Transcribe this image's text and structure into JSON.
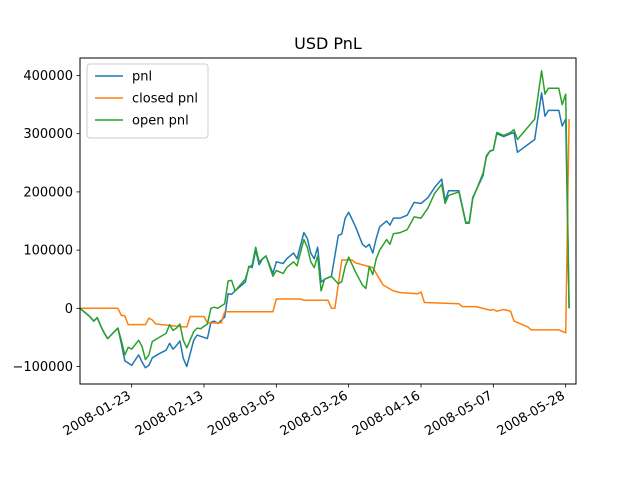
{
  "chart_data": {
    "type": "line",
    "title": "USD PnL",
    "xlabel": "",
    "ylabel": "",
    "x_axis_type": "date",
    "xlim": [
      "2008-01-08",
      "2008-05-31"
    ],
    "ylim": [
      -130000,
      430000
    ],
    "x_ticks": [
      "2008-01-23",
      "2008-02-13",
      "2008-03-05",
      "2008-03-26",
      "2008-04-16",
      "2008-05-07",
      "2008-05-28"
    ],
    "y_ticks": [
      -100000,
      0,
      100000,
      200000,
      300000,
      400000
    ],
    "y_tick_labels": [
      "−100000",
      "0",
      "100000",
      "200000",
      "300000",
      "400000"
    ],
    "grid": false,
    "legend_position": "upper-left",
    "series": [
      {
        "name": "pnl",
        "color": "#1f77b4",
        "points": [
          [
            "2008-01-08",
            0
          ],
          [
            "2008-01-09",
            -5000
          ],
          [
            "2008-01-10",
            -10000
          ],
          [
            "2008-01-11",
            -15000
          ],
          [
            "2008-01-12",
            -22000
          ],
          [
            "2008-01-13",
            -16000
          ],
          [
            "2008-01-14",
            -30000
          ],
          [
            "2008-01-15",
            -42000
          ],
          [
            "2008-01-16",
            -52000
          ],
          [
            "2008-01-17",
            -46000
          ],
          [
            "2008-01-18",
            -40000
          ],
          [
            "2008-01-19",
            -34000
          ],
          [
            "2008-01-20",
            -60000
          ],
          [
            "2008-01-21",
            -90000
          ],
          [
            "2008-01-22",
            -94000
          ],
          [
            "2008-01-23",
            -98000
          ],
          [
            "2008-01-25",
            -80000
          ],
          [
            "2008-01-26",
            -92000
          ],
          [
            "2008-01-27",
            -102000
          ],
          [
            "2008-01-28",
            -98000
          ],
          [
            "2008-01-29",
            -85000
          ],
          [
            "2008-01-31",
            -78000
          ],
          [
            "2008-02-02",
            -72000
          ],
          [
            "2008-02-03",
            -60000
          ],
          [
            "2008-02-04",
            -70000
          ],
          [
            "2008-02-05",
            -64000
          ],
          [
            "2008-02-06",
            -56000
          ],
          [
            "2008-02-07",
            -86000
          ],
          [
            "2008-02-08",
            -100000
          ],
          [
            "2008-02-10",
            -55000
          ],
          [
            "2008-02-11",
            -46000
          ],
          [
            "2008-02-12",
            -48000
          ],
          [
            "2008-02-14",
            -52000
          ],
          [
            "2008-02-15",
            -24000
          ],
          [
            "2008-02-16",
            -22000
          ],
          [
            "2008-02-17",
            -26000
          ],
          [
            "2008-02-19",
            -15000
          ],
          [
            "2008-02-20",
            25000
          ],
          [
            "2008-02-21",
            24000
          ],
          [
            "2008-02-22",
            30000
          ],
          [
            "2008-02-25",
            45000
          ],
          [
            "2008-02-26",
            72000
          ],
          [
            "2008-02-27",
            70000
          ],
          [
            "2008-02-28",
            100000
          ],
          [
            "2008-02-29",
            75000
          ],
          [
            "2008-03-01",
            85000
          ],
          [
            "2008-03-02",
            90000
          ],
          [
            "2008-03-04",
            60000
          ],
          [
            "2008-03-05",
            80000
          ],
          [
            "2008-03-07",
            77000
          ],
          [
            "2008-03-08",
            85000
          ],
          [
            "2008-03-10",
            95000
          ],
          [
            "2008-03-11",
            85000
          ],
          [
            "2008-03-13",
            130000
          ],
          [
            "2008-03-14",
            120000
          ],
          [
            "2008-03-15",
            95000
          ],
          [
            "2008-03-16",
            85000
          ],
          [
            "2008-03-17",
            105000
          ],
          [
            "2008-03-18",
            45000
          ],
          [
            "2008-03-19",
            50000
          ],
          [
            "2008-03-21",
            55000
          ],
          [
            "2008-03-23",
            125000
          ],
          [
            "2008-03-24",
            128000
          ],
          [
            "2008-03-25",
            155000
          ],
          [
            "2008-03-26",
            165000
          ],
          [
            "2008-03-28",
            140000
          ],
          [
            "2008-03-30",
            110000
          ],
          [
            "2008-03-31",
            105000
          ],
          [
            "2008-04-01",
            110000
          ],
          [
            "2008-04-02",
            95000
          ],
          [
            "2008-04-03",
            120000
          ],
          [
            "2008-04-04",
            140000
          ],
          [
            "2008-04-06",
            150000
          ],
          [
            "2008-04-07",
            143000
          ],
          [
            "2008-04-08",
            155000
          ],
          [
            "2008-04-10",
            155000
          ],
          [
            "2008-04-12",
            160000
          ],
          [
            "2008-04-14",
            182000
          ],
          [
            "2008-04-16",
            180000
          ],
          [
            "2008-04-18",
            190000
          ],
          [
            "2008-04-20",
            208000
          ],
          [
            "2008-04-22",
            222000
          ],
          [
            "2008-04-23",
            185000
          ],
          [
            "2008-04-24",
            202000
          ],
          [
            "2008-04-27",
            202000
          ],
          [
            "2008-04-29",
            148000
          ],
          [
            "2008-04-30",
            147000
          ],
          [
            "2008-05-01",
            190000
          ],
          [
            "2008-05-04",
            228000
          ],
          [
            "2008-05-05",
            262000
          ],
          [
            "2008-05-06",
            270000
          ],
          [
            "2008-05-07",
            272000
          ],
          [
            "2008-05-08",
            300000
          ],
          [
            "2008-05-10",
            295000
          ],
          [
            "2008-05-12",
            300000
          ],
          [
            "2008-05-13",
            302000
          ],
          [
            "2008-05-14",
            268000
          ],
          [
            "2008-05-19",
            290000
          ],
          [
            "2008-05-21",
            370000
          ],
          [
            "2008-05-22",
            330000
          ],
          [
            "2008-05-23",
            340000
          ],
          [
            "2008-05-26",
            340000
          ],
          [
            "2008-05-27",
            313000
          ],
          [
            "2008-05-28",
            325000
          ],
          [
            "2008-05-29",
            0
          ]
        ]
      },
      {
        "name": "closed pnl",
        "color": "#ff7f0e",
        "points": [
          [
            "2008-01-08",
            0
          ],
          [
            "2008-01-19",
            0
          ],
          [
            "2008-01-20",
            -12000
          ],
          [
            "2008-01-21",
            -13000
          ],
          [
            "2008-01-22",
            -28000
          ],
          [
            "2008-01-27",
            -28000
          ],
          [
            "2008-01-28",
            -17000
          ],
          [
            "2008-01-29",
            -20000
          ],
          [
            "2008-01-30",
            -27000
          ],
          [
            "2008-02-07",
            -32000
          ],
          [
            "2008-02-08",
            -32000
          ],
          [
            "2008-02-09",
            -14000
          ],
          [
            "2008-02-13",
            -14000
          ],
          [
            "2008-02-14",
            -25000
          ],
          [
            "2008-02-18",
            -25000
          ],
          [
            "2008-02-19",
            -6000
          ],
          [
            "2008-03-04",
            -6000
          ],
          [
            "2008-03-05",
            16000
          ],
          [
            "2008-03-12",
            16000
          ],
          [
            "2008-03-13",
            14000
          ],
          [
            "2008-03-20",
            14000
          ],
          [
            "2008-03-21",
            0
          ],
          [
            "2008-03-22",
            0
          ],
          [
            "2008-03-24",
            83000
          ],
          [
            "2008-03-27",
            83000
          ],
          [
            "2008-03-28",
            78000
          ],
          [
            "2008-04-02",
            70000
          ],
          [
            "2008-04-05",
            40000
          ],
          [
            "2008-04-08",
            30000
          ],
          [
            "2008-04-10",
            27000
          ],
          [
            "2008-04-15",
            25000
          ],
          [
            "2008-04-16",
            28000
          ],
          [
            "2008-04-17",
            10000
          ],
          [
            "2008-04-27",
            8000
          ],
          [
            "2008-04-28",
            3000
          ],
          [
            "2008-05-02",
            3000
          ],
          [
            "2008-05-06",
            -3000
          ],
          [
            "2008-05-07",
            -2000
          ],
          [
            "2008-05-08",
            -5000
          ],
          [
            "2008-05-10",
            -2000
          ],
          [
            "2008-05-12",
            -5000
          ],
          [
            "2008-05-13",
            -22000
          ],
          [
            "2008-05-17",
            -32000
          ],
          [
            "2008-05-18",
            -37000
          ],
          [
            "2008-05-26",
            -37000
          ],
          [
            "2008-05-28",
            -42000
          ],
          [
            "2008-05-29",
            325000
          ]
        ]
      },
      {
        "name": "open pnl",
        "color": "#2ca02c",
        "points": [
          [
            "2008-01-08",
            0
          ],
          [
            "2008-01-09",
            -5000
          ],
          [
            "2008-01-10",
            -10000
          ],
          [
            "2008-01-11",
            -15000
          ],
          [
            "2008-01-12",
            -22000
          ],
          [
            "2008-01-13",
            -16000
          ],
          [
            "2008-01-14",
            -30000
          ],
          [
            "2008-01-15",
            -42000
          ],
          [
            "2008-01-16",
            -52000
          ],
          [
            "2008-01-17",
            -46000
          ],
          [
            "2008-01-18",
            -40000
          ],
          [
            "2008-01-19",
            -34000
          ],
          [
            "2008-01-20",
            -55000
          ],
          [
            "2008-01-21",
            -80000
          ],
          [
            "2008-01-22",
            -67000
          ],
          [
            "2008-01-23",
            -70000
          ],
          [
            "2008-01-25",
            -55000
          ],
          [
            "2008-01-26",
            -65000
          ],
          [
            "2008-01-27",
            -88000
          ],
          [
            "2008-01-28",
            -80000
          ],
          [
            "2008-01-29",
            -57000
          ],
          [
            "2008-01-31",
            -50000
          ],
          [
            "2008-02-02",
            -43000
          ],
          [
            "2008-02-03",
            -28000
          ],
          [
            "2008-02-04",
            -38000
          ],
          [
            "2008-02-05",
            -34000
          ],
          [
            "2008-02-06",
            -27000
          ],
          [
            "2008-02-07",
            -55000
          ],
          [
            "2008-02-08",
            -68000
          ],
          [
            "2008-02-10",
            -40000
          ],
          [
            "2008-02-11",
            -34000
          ],
          [
            "2008-02-12",
            -35000
          ],
          [
            "2008-02-14",
            -27000
          ],
          [
            "2008-02-15",
            0
          ],
          [
            "2008-02-16",
            2000
          ],
          [
            "2008-02-17",
            0
          ],
          [
            "2008-02-19",
            8000
          ],
          [
            "2008-02-20",
            47000
          ],
          [
            "2008-02-21",
            48000
          ],
          [
            "2008-02-22",
            30000
          ],
          [
            "2008-02-25",
            50000
          ],
          [
            "2008-02-26",
            70000
          ],
          [
            "2008-02-27",
            75000
          ],
          [
            "2008-02-28",
            105000
          ],
          [
            "2008-02-29",
            80000
          ],
          [
            "2008-03-01",
            85000
          ],
          [
            "2008-03-02",
            90000
          ],
          [
            "2008-03-04",
            55000
          ],
          [
            "2008-03-05",
            65000
          ],
          [
            "2008-03-07",
            60000
          ],
          [
            "2008-03-08",
            70000
          ],
          [
            "2008-03-10",
            80000
          ],
          [
            "2008-03-11",
            73000
          ],
          [
            "2008-03-13",
            118000
          ],
          [
            "2008-03-14",
            105000
          ],
          [
            "2008-03-15",
            80000
          ],
          [
            "2008-03-16",
            70000
          ],
          [
            "2008-03-17",
            90000
          ],
          [
            "2008-03-18",
            30000
          ],
          [
            "2008-03-19",
            50000
          ],
          [
            "2008-03-21",
            55000
          ],
          [
            "2008-03-23",
            42000
          ],
          [
            "2008-03-24",
            46000
          ],
          [
            "2008-03-25",
            72000
          ],
          [
            "2008-03-26",
            88000
          ],
          [
            "2008-03-28",
            62000
          ],
          [
            "2008-03-30",
            40000
          ],
          [
            "2008-03-31",
            34000
          ],
          [
            "2008-04-01",
            72000
          ],
          [
            "2008-04-02",
            58000
          ],
          [
            "2008-04-03",
            85000
          ],
          [
            "2008-04-04",
            100000
          ],
          [
            "2008-04-06",
            118000
          ],
          [
            "2008-04-07",
            110000
          ],
          [
            "2008-04-08",
            128000
          ],
          [
            "2008-04-10",
            130000
          ],
          [
            "2008-04-12",
            135000
          ],
          [
            "2008-04-14",
            157000
          ],
          [
            "2008-04-16",
            155000
          ],
          [
            "2008-04-18",
            172000
          ],
          [
            "2008-04-20",
            198000
          ],
          [
            "2008-04-22",
            213000
          ],
          [
            "2008-04-23",
            180000
          ],
          [
            "2008-04-24",
            194000
          ],
          [
            "2008-04-27",
            200000
          ],
          [
            "2008-04-29",
            146000
          ],
          [
            "2008-04-30",
            146000
          ],
          [
            "2008-05-01",
            188000
          ],
          [
            "2008-05-04",
            232000
          ],
          [
            "2008-05-05",
            260000
          ],
          [
            "2008-05-06",
            270000
          ],
          [
            "2008-05-07",
            272000
          ],
          [
            "2008-05-08",
            302000
          ],
          [
            "2008-05-10",
            297000
          ],
          [
            "2008-05-12",
            302000
          ],
          [
            "2008-05-13",
            307000
          ],
          [
            "2008-05-14",
            290000
          ],
          [
            "2008-05-19",
            325000
          ],
          [
            "2008-05-21",
            408000
          ],
          [
            "2008-05-22",
            368000
          ],
          [
            "2008-05-23",
            378000
          ],
          [
            "2008-05-26",
            378000
          ],
          [
            "2008-05-27",
            350000
          ],
          [
            "2008-05-28",
            368000
          ],
          [
            "2008-05-29",
            0
          ]
        ]
      }
    ]
  }
}
